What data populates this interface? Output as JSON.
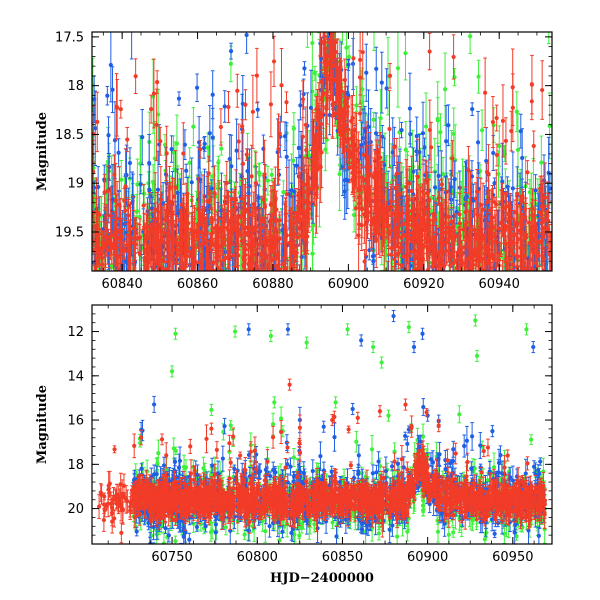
{
  "chart_data": [
    {
      "type": "scatter",
      "panel": "top",
      "xlabel": "",
      "ylabel": "Magnitude",
      "xlim": [
        60832,
        60954
      ],
      "ylim": [
        19.9,
        17.45
      ],
      "y_inverted": true,
      "xticks": [
        60840,
        60860,
        60880,
        60900,
        60920,
        60940
      ],
      "yticks": [
        17.5,
        18,
        18.5,
        19,
        19.5
      ],
      "xtick_labels": [
        "60840",
        "60860",
        "60880",
        "60900",
        "60920",
        "60940"
      ],
      "ytick_labels": [
        "17.5",
        "18",
        "18.5",
        "19",
        "19.5"
      ],
      "outburst_peak": {
        "x": 60896,
        "y": 17.7
      },
      "baseline_mag": 19.6,
      "series": [
        {
          "name": "blue",
          "color": "#1f5fe6"
        },
        {
          "name": "green",
          "color": "#3ef03a"
        },
        {
          "name": "red",
          "color": "#f23c28"
        }
      ]
    },
    {
      "type": "scatter",
      "panel": "bottom",
      "xlabel": "HJD−2400000",
      "ylabel": "Magnitude",
      "xlim": [
        60703,
        60973
      ],
      "ylim": [
        21.6,
        10.8
      ],
      "y_inverted": true,
      "xticks": [
        60750,
        60800,
        60850,
        60900,
        60950
      ],
      "yticks": [
        12,
        14,
        16,
        18,
        20
      ],
      "xtick_labels": [
        "60750",
        "60800",
        "60850",
        "60900",
        "60950"
      ],
      "ytick_labels": [
        "12",
        "14",
        "16",
        "18",
        "20"
      ],
      "outburst_peak": {
        "x": 60896,
        "y": 18.0
      },
      "baseline_mag": 19.6,
      "series": [
        {
          "name": "blue",
          "color": "#1f5fe6",
          "outliers": [
            [
              60795,
              11.9
            ],
            [
              60818,
              11.9
            ],
            [
              60861,
              12.4
            ],
            [
              60880,
              11.3
            ],
            [
              60892,
              12.7
            ],
            [
              60897,
              12.1
            ],
            [
              60962,
              12.7
            ],
            [
              60839,
              16.3
            ],
            [
              60856,
              15.5
            ],
            [
              60900,
              15.8
            ],
            [
              60938,
              16.5
            ]
          ]
        },
        {
          "name": "green",
          "color": "#3ef03a",
          "outliers": [
            [
              60750,
              13.8
            ],
            [
              60752,
              12.1
            ],
            [
              60787,
              12.0
            ],
            [
              60808,
              12.2
            ],
            [
              60829,
              12.5
            ],
            [
              60853,
              11.9
            ],
            [
              60868,
              12.7
            ],
            [
              60873,
              13.4
            ],
            [
              60889,
              11.8
            ],
            [
              60928,
              11.5
            ],
            [
              60929,
              13.1
            ],
            [
              60958,
              11.9
            ],
            [
              60810,
              15.2
            ],
            [
              60815,
              16.5
            ],
            [
              60846,
              15.2
            ],
            [
              60877,
              15.8
            ],
            [
              60932,
              17.2
            ]
          ]
        },
        {
          "name": "red",
          "color": "#f23c28",
          "outliers": [
            [
              60819,
              14.4
            ],
            [
              60844,
              16.0
            ],
            [
              60859,
              15.9
            ],
            [
              60872,
              15.6
            ],
            [
              60887,
              15.3
            ],
            [
              60933,
              17.4
            ],
            [
              60947,
              17.6
            ]
          ]
        }
      ]
    }
  ]
}
